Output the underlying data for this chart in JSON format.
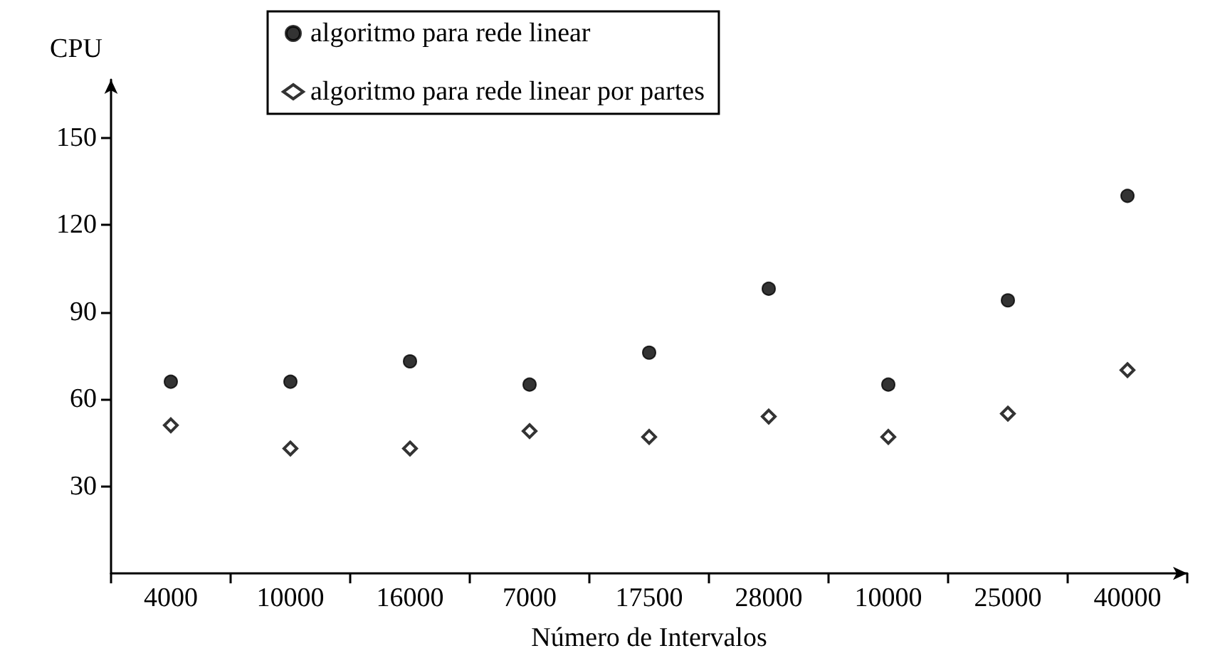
{
  "chart_data": {
    "type": "scatter",
    "xlabel": "Número de Intervalos",
    "ylabel": "CPU",
    "categories": [
      "4000",
      "10000",
      "16000",
      "7000",
      "17500",
      "28000",
      "10000",
      "25000",
      "40000"
    ],
    "series": [
      {
        "name": "algoritmo para rede linear",
        "color": "#000000",
        "marker": "circle",
        "values": [
          66,
          66,
          73,
          65,
          76,
          98,
          65,
          94,
          130
        ]
      },
      {
        "name": "algoritmo para rede linear por partes",
        "color": "#000000",
        "marker": "diamond",
        "values": [
          51,
          43,
          43,
          49,
          47,
          54,
          47,
          55,
          70
        ]
      }
    ],
    "ylim": [
      0,
      170
    ],
    "yticks": [
      30,
      60,
      90,
      120,
      150
    ],
    "grid": false,
    "legend": "top"
  }
}
